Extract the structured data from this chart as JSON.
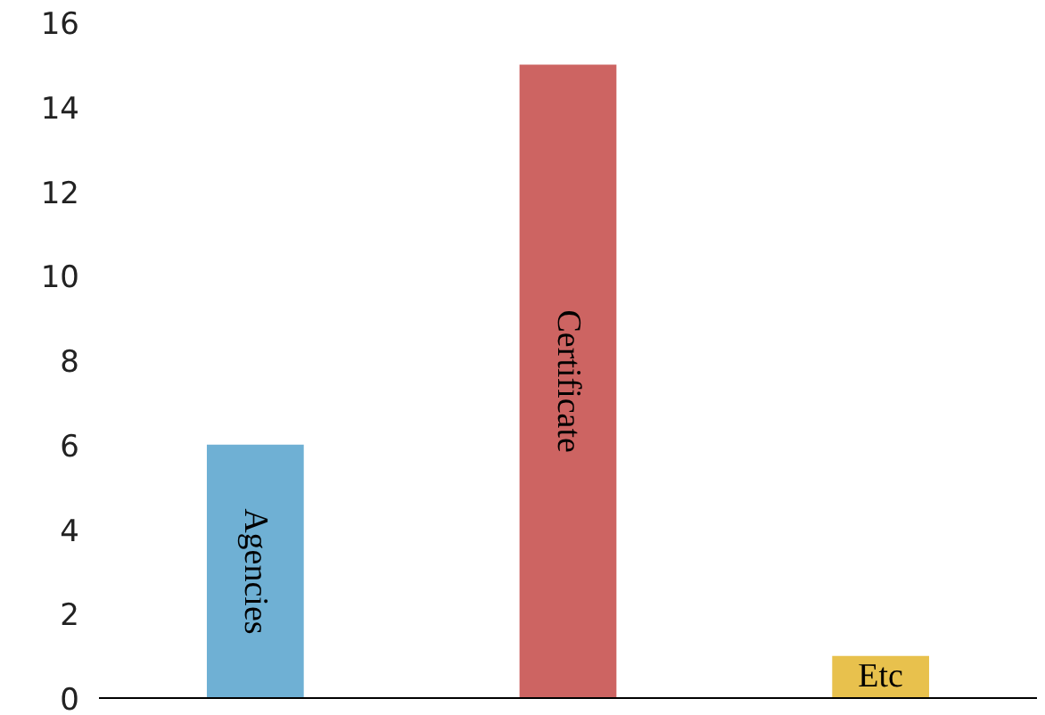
{
  "chart_data": {
    "type": "bar",
    "categories": [
      "Agencies",
      "Certificate",
      "Etc"
    ],
    "values": [
      6,
      15,
      1
    ],
    "colors": [
      "#6fb0d4",
      "#cd6462",
      "#e8c14d"
    ],
    "ylim": [
      0,
      16
    ],
    "yticks": [
      0,
      2,
      4,
      6,
      8,
      10,
      12,
      14,
      16
    ],
    "grid": false
  }
}
